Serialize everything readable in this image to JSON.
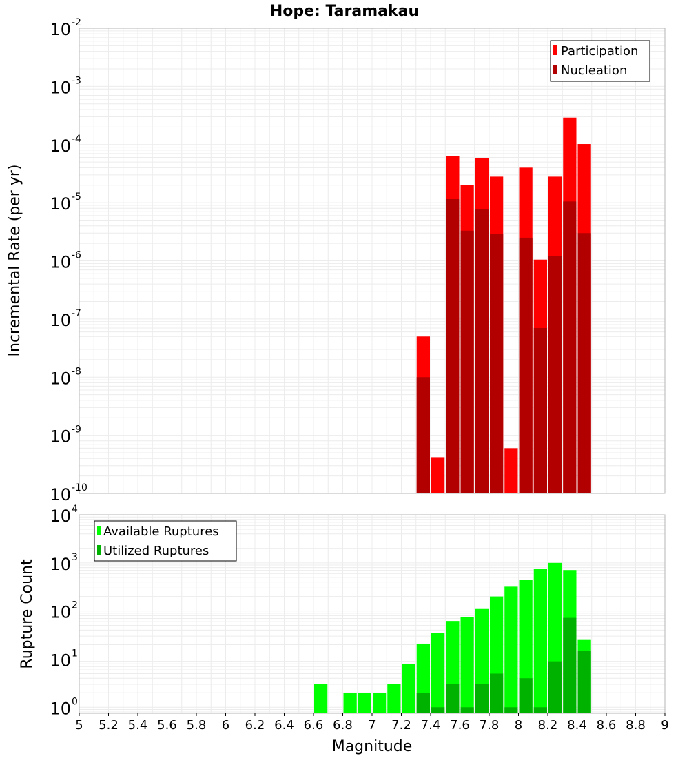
{
  "chart_data": [
    {
      "type": "bar",
      "title": "Hope: Taramakau",
      "xlabel": "",
      "ylabel": "Incremental Rate (per yr)",
      "xlim": [
        5,
        9
      ],
      "ylim": [
        1e-10,
        0.01
      ],
      "yscale": "log",
      "yticks": [
        {
          "base": "10",
          "exp": "-10",
          "value": 1e-10
        },
        {
          "base": "10",
          "exp": "-9",
          "value": 1e-09
        },
        {
          "base": "10",
          "exp": "-8",
          "value": 1e-08
        },
        {
          "base": "10",
          "exp": "-7",
          "value": 1e-07
        },
        {
          "base": "10",
          "exp": "-6",
          "value": 1e-06
        },
        {
          "base": "10",
          "exp": "-5",
          "value": 1e-05
        },
        {
          "base": "10",
          "exp": "-4",
          "value": 0.0001
        },
        {
          "base": "10",
          "exp": "-3",
          "value": 0.001
        },
        {
          "base": "10",
          "exp": "-2",
          "value": 0.01
        }
      ],
      "bar_width": 0.1,
      "grid": true,
      "legend_position": "top-right",
      "series": [
        {
          "name": "Participation",
          "color": "#ff0000",
          "x": [
            7.35,
            7.45,
            7.55,
            7.65,
            7.75,
            7.85,
            7.95,
            8.05,
            8.15,
            8.25,
            8.35,
            8.45
          ],
          "values": [
            5e-08,
            4.2e-10,
            6.3e-05,
            2e-05,
            5.8e-05,
            2.8e-05,
            6e-10,
            4e-05,
            1.05e-06,
            2.8e-05,
            0.00029,
            0.000102
          ]
        },
        {
          "name": "Nucleation",
          "color": "#b20000",
          "x": [
            7.35,
            7.45,
            7.55,
            7.65,
            7.75,
            7.85,
            7.95,
            8.05,
            8.15,
            8.25,
            8.35,
            8.45
          ],
          "values": [
            1e-08,
            null,
            1.15e-05,
            3.3e-06,
            7.7e-06,
            2.9e-06,
            null,
            2.5e-06,
            7e-08,
            1.2e-06,
            1.05e-05,
            3e-06
          ]
        }
      ]
    },
    {
      "type": "bar",
      "title": "",
      "xlabel": "Magnitude",
      "ylabel": "Rupture Count",
      "xlim": [
        5,
        9
      ],
      "ylim": [
        0.75,
        10000
      ],
      "yscale": "log",
      "xticks": [
        "5",
        "5.2",
        "5.4",
        "5.6",
        "5.8",
        "6",
        "6.2",
        "6.4",
        "6.6",
        "6.8",
        "7",
        "7.2",
        "7.4",
        "7.6",
        "7.8",
        "8",
        "8.2",
        "8.4",
        "8.6",
        "8.8",
        "9"
      ],
      "xtick_values": [
        5,
        5.2,
        5.4,
        5.6,
        5.8,
        6,
        6.2,
        6.4,
        6.6,
        6.8,
        7,
        7.2,
        7.4,
        7.6,
        7.8,
        8,
        8.2,
        8.4,
        8.6,
        8.8,
        9
      ],
      "yticks": [
        {
          "base": "10",
          "exp": "0",
          "value": 1
        },
        {
          "base": "10",
          "exp": "1",
          "value": 10
        },
        {
          "base": "10",
          "exp": "2",
          "value": 100
        },
        {
          "base": "10",
          "exp": "3",
          "value": 1000
        },
        {
          "base": "10",
          "exp": "4",
          "value": 10000
        }
      ],
      "bar_width": 0.1,
      "grid": true,
      "legend_position": "top-left",
      "series": [
        {
          "name": "Available Ruptures",
          "color": "#00ff00",
          "x": [
            6.65,
            6.85,
            6.95,
            7.05,
            7.15,
            7.25,
            7.35,
            7.45,
            7.55,
            7.65,
            7.75,
            7.85,
            7.95,
            8.05,
            8.15,
            8.25,
            8.35,
            8.45
          ],
          "values": [
            3,
            2,
            2,
            2,
            3,
            8,
            21,
            35,
            62,
            75,
            110,
            200,
            320,
            440,
            750,
            1000,
            710,
            25
          ]
        },
        {
          "name": "Utilized Ruptures",
          "color": "#00b200",
          "x": [
            7.35,
            7.45,
            7.55,
            7.65,
            7.75,
            7.85,
            7.95,
            8.05,
            8.15,
            8.25,
            8.35,
            8.45
          ],
          "values": [
            2,
            1,
            3,
            1,
            3,
            5,
            1,
            4,
            1,
            9,
            72,
            15
          ]
        }
      ]
    }
  ]
}
